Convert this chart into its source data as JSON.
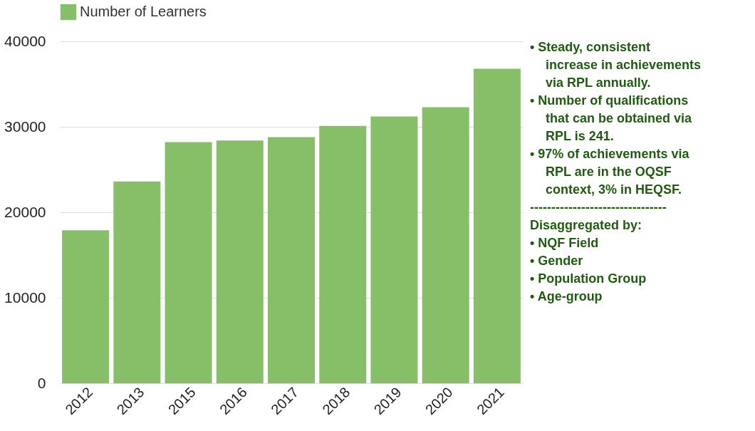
{
  "chart_data": {
    "type": "bar",
    "categories": [
      "2012",
      "2013",
      "2015",
      "2016",
      "2017",
      "2018",
      "2019",
      "2020",
      "2021"
    ],
    "series": [
      {
        "name": "Number of Learners",
        "color": "#86bf67",
        "values": [
          17900,
          23600,
          28200,
          28400,
          28800,
          30100,
          31200,
          32300,
          36800
        ]
      }
    ],
    "ylim": [
      0,
      40000
    ],
    "yticks": [
      0,
      10000,
      20000,
      30000,
      40000
    ],
    "grid": "y",
    "legend": "top",
    "annotations": [
      "• Steady, consistent increase in achievements via RPL annually.",
      "• Number of qualifications that can be obtained via RPL is 241.",
      "• 97%  of achievements via RPL are in the OQSF  context, 3% in HEQSF.",
      "--------------------------------",
      "Disaggregated by:",
      "• NQF Field",
      "• Gender",
      "• Population Group",
      "• Age-group"
    ]
  }
}
